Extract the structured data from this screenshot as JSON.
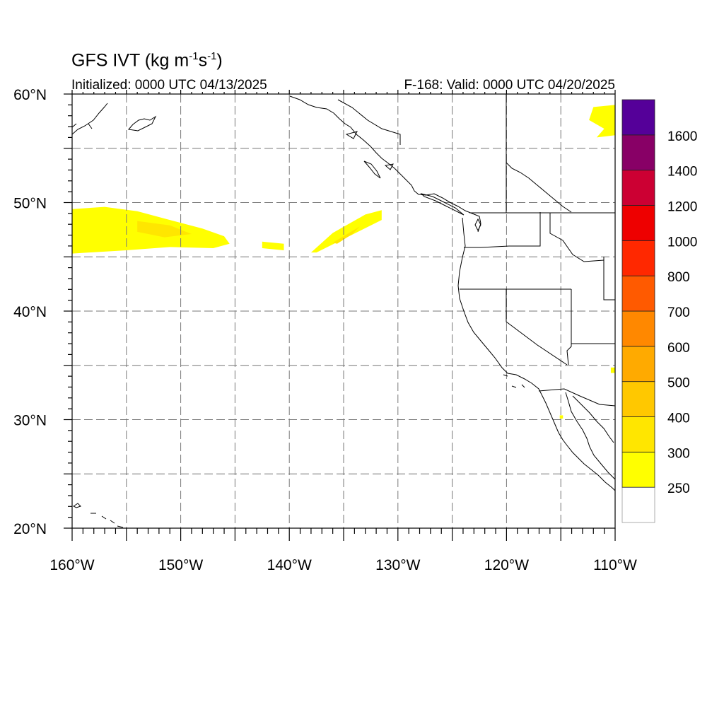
{
  "title": {
    "prefix": "GFS IVT (kg m",
    "sup1": "-1",
    "mid": "s",
    "sup2": "-1",
    "suffix": ")"
  },
  "init_text": "Initialized: 0000 UTC 04/13/2025",
  "valid_text": "F-168: Valid: 0000 UTC 04/20/2025",
  "map": {
    "lon_range": [
      -160,
      -110
    ],
    "lat_range": [
      20,
      60
    ],
    "lon_labels": [
      {
        "lon": -160,
        "label": "160°W"
      },
      {
        "lon": -150,
        "label": "150°W"
      },
      {
        "lon": -140,
        "label": "140°W"
      },
      {
        "lon": -130,
        "label": "130°W"
      },
      {
        "lon": -120,
        "label": "120°W"
      },
      {
        "lon": -110,
        "label": "110°W"
      }
    ],
    "lat_labels": [
      {
        "lat": 60,
        "label": "60°N"
      },
      {
        "lat": 50,
        "label": "50°N"
      },
      {
        "lat": 40,
        "label": "40°N"
      },
      {
        "lat": 30,
        "label": "30°N"
      },
      {
        "lat": 20,
        "label": "20°N"
      }
    ],
    "grid_lons": [
      -155,
      -150,
      -145,
      -140,
      -135,
      -130,
      -125,
      -120,
      -115
    ],
    "grid_lats": [
      55,
      50,
      45,
      40,
      35,
      30,
      25
    ],
    "grid": "dashed"
  },
  "ivt_regions": [
    {
      "name": "ivt-region-west-pacific",
      "level": "250-300",
      "color": "#FFFF00",
      "polygon": [
        [
          -160,
          49.4
        ],
        [
          -157,
          49.6
        ],
        [
          -154,
          49.2
        ],
        [
          -151,
          48.4
        ],
        [
          -148,
          47.6
        ],
        [
          -146,
          46.9
        ],
        [
          -145.5,
          46.2
        ],
        [
          -147,
          45.8
        ],
        [
          -151,
          45.9
        ],
        [
          -155,
          45.6
        ],
        [
          -160,
          45.3
        ]
      ]
    },
    {
      "name": "ivt-region-west-pacific-core",
      "level": "300-400",
      "color": "#FFE600",
      "polygon": [
        [
          -154,
          48.3
        ],
        [
          -151,
          47.9
        ],
        [
          -149,
          47.1
        ],
        [
          -151.5,
          46.8
        ],
        [
          -154,
          47.3
        ]
      ]
    },
    {
      "name": "ivt-region-mid-pacific-small",
      "level": "250-300",
      "color": "#FFFF00",
      "polygon": [
        [
          -142.5,
          46.4
        ],
        [
          -140.5,
          46.2
        ],
        [
          -140.5,
          45.6
        ],
        [
          -142.5,
          45.8
        ]
      ]
    },
    {
      "name": "ivt-region-central-pacific",
      "level": "250-300",
      "color": "#FFFF00",
      "polygon": [
        [
          -137.5,
          45.4
        ],
        [
          -131.5,
          48.4
        ],
        [
          -131.5,
          49.3
        ],
        [
          -133,
          48.9
        ],
        [
          -136,
          47.2
        ],
        [
          -138,
          45.4
        ]
      ]
    },
    {
      "name": "ivt-region-central-pacific-core",
      "level": "300-400",
      "color": "#FFE600",
      "polygon": [
        [
          -136,
          46.3
        ],
        [
          -133.5,
          47.8
        ],
        [
          -134.2,
          47.1
        ],
        [
          -135.6,
          46.2
        ]
      ]
    },
    {
      "name": "ivt-region-northeast",
      "level": "250-300",
      "color": "#FFFF00",
      "polygon": [
        [
          -112,
          58.8
        ],
        [
          -110,
          59
        ],
        [
          -110,
          56.2
        ],
        [
          -111.7,
          56
        ],
        [
          -111,
          56.8
        ],
        [
          -112.4,
          57.6
        ]
      ]
    },
    {
      "name": "ivt-region-southwest-dot",
      "level": "250-300",
      "color": "#FFFF00",
      "polygon": [
        [
          -110.4,
          34.8
        ],
        [
          -110,
          34.8
        ],
        [
          -110,
          34.3
        ],
        [
          -110.4,
          34.3
        ]
      ]
    },
    {
      "name": "ivt-region-baja-dot",
      "level": "250-300",
      "color": "#FFFF00",
      "polygon": [
        [
          -115.1,
          30.4
        ],
        [
          -114.8,
          30.4
        ],
        [
          -114.8,
          30.1
        ],
        [
          -115.1,
          30.1
        ]
      ]
    }
  ],
  "colorbar": {
    "labels": [
      "250",
      "300",
      "400",
      "500",
      "600",
      "700",
      "800",
      "1000",
      "1200",
      "1400",
      "1600"
    ],
    "colors": [
      "#FFFFFF",
      "#FFFF00",
      "#FFE600",
      "#FFC800",
      "#FFAA00",
      "#FF8800",
      "#FF5A00",
      "#FF2800",
      "#EE0000",
      "#CC0033",
      "#880066",
      "#550099"
    ]
  }
}
